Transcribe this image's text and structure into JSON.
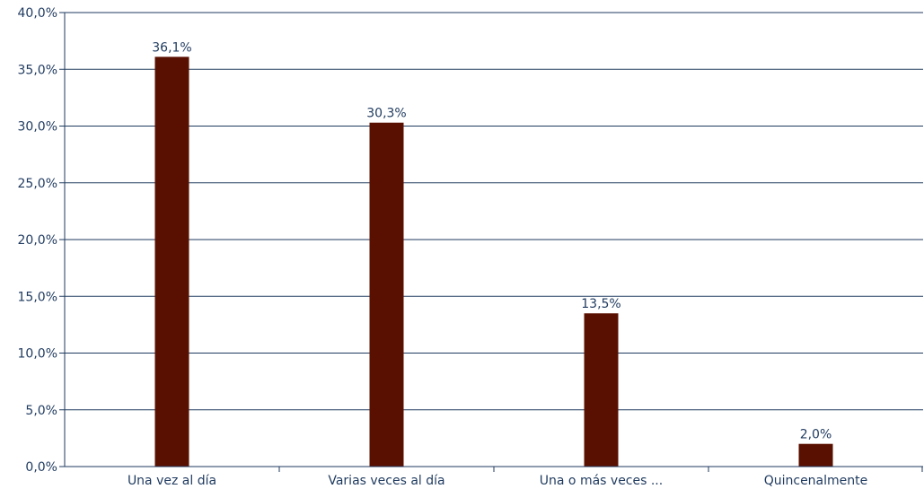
{
  "chart_data": {
    "type": "bar",
    "categories": [
      "Una vez al día",
      "Varias veces al día",
      "Una o más veces ...",
      "Quincenalmente"
    ],
    "values": [
      36.1,
      30.3,
      13.5,
      2.0
    ],
    "data_labels": [
      "36,1%",
      "30,3%",
      "13,5%",
      "2,0%"
    ],
    "y_ticks": [
      0,
      5,
      10,
      15,
      20,
      25,
      30,
      35,
      40
    ],
    "y_tick_labels": [
      "0,0%",
      "5,0%",
      "10,0%",
      "15,0%",
      "20,0%",
      "25,0%",
      "30,0%",
      "35,0%",
      "40,0%"
    ],
    "ylim": [
      0,
      40
    ],
    "grid": true,
    "legend": "none",
    "title": "",
    "xlabel": "",
    "ylabel": ""
  },
  "colors": {
    "bar": "#5a1000",
    "axis": "#1f3a5f",
    "text": "#1f3a5f"
  }
}
